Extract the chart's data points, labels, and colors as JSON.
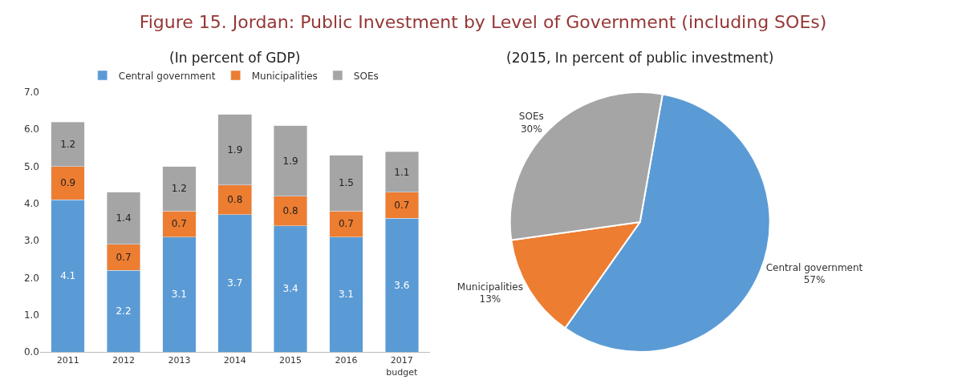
{
  "chart_data": [
    {
      "type": "bar",
      "title": "Figure 15. Jordan: Public Investment by Level of Government (including SOEs)",
      "subtitle": "(In percent of GDP)",
      "categories": [
        "2011",
        "2012",
        "2013",
        "2014",
        "2015",
        "2016",
        "2017\nbudget"
      ],
      "stacked": true,
      "data_labels": true,
      "legend": "top",
      "ylim": [
        0,
        7
      ],
      "yticks": [
        {
          "value": 0,
          "label": "0.0"
        },
        {
          "value": 1,
          "label": "1.0"
        },
        {
          "value": 2,
          "label": "2.0"
        },
        {
          "value": 3,
          "label": "3.0"
        },
        {
          "value": 4,
          "label": "4.0"
        },
        {
          "value": 5,
          "label": "5.0"
        },
        {
          "value": 6,
          "label": "6.0"
        },
        {
          "value": 7,
          "label": "7.0"
        }
      ],
      "series": [
        {
          "name": "Central government",
          "color": "#5b9bd5",
          "values": [
            4.1,
            2.2,
            3.1,
            3.7,
            3.4,
            3.1,
            3.6
          ]
        },
        {
          "name": "Municipalities",
          "color": "#ed7d31",
          "values": [
            0.9,
            0.7,
            0.7,
            0.8,
            0.8,
            0.7,
            0.7
          ]
        },
        {
          "name": "SOEs",
          "color": "#a5a5a5",
          "values": [
            1.2,
            1.4,
            1.2,
            1.9,
            1.9,
            1.5,
            1.1
          ]
        }
      ]
    },
    {
      "type": "pie",
      "subtitle": "(2015, In percent of public investment)",
      "categories": [
        "Central government",
        "Municipalities",
        "SOEs"
      ],
      "values": [
        57,
        13,
        30
      ],
      "value_labels": [
        "57%",
        "13%",
        "30%"
      ],
      "colors": [
        "#5b9bd5",
        "#ed7d31",
        "#a5a5a5"
      ],
      "legend": false
    }
  ]
}
